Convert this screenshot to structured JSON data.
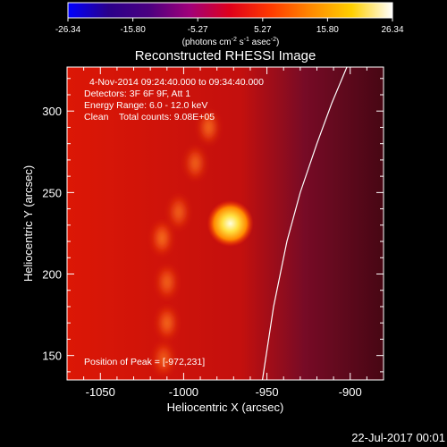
{
  "chart_data": {
    "type": "heatmap",
    "title": "Reconstructed RHESSI Image",
    "xlabel": "Heliocentric X (arcsec)",
    "ylabel": "Heliocentric Y (arcsec)",
    "xlim": [
      -1070,
      -880
    ],
    "ylim": [
      135,
      327
    ],
    "x_ticks": [
      -1050,
      -1000,
      -950,
      -900
    ],
    "y_ticks": [
      150,
      200,
      250,
      300
    ],
    "colorbar": {
      "min": -26.34,
      "max": 26.34,
      "tick_values": [
        -26.34,
        -15.8,
        -5.27,
        5.27,
        15.8,
        26.34
      ],
      "tick_labels": [
        "-26.34",
        "-15.80",
        "-5.27",
        "5.27",
        "15.80",
        "26.34"
      ],
      "units_text": "(photons cm",
      "units_sup1": "-2",
      "units_mid": " s",
      "units_sup2": "-1",
      "units_mid2": " asec",
      "units_sup3": "-2",
      "units_end": ")",
      "stops": [
        "#0000ff",
        "#2a008a",
        "#4b0080",
        "#a0007a",
        "#e0001a",
        "#ff3a00",
        "#ff8a00",
        "#ffd000",
        "#ffffff"
      ]
    },
    "annotations": {
      "time_range": "4-Nov-2014 09:24:40.000 to 09:34:40.000",
      "detectors": "Detectors: 3F 6F 9F, Att 1",
      "energy": "Energy Range: 6.0 - 12.0 keV",
      "clean": "Clean    Total counts: 9.08E+05",
      "peak": "Position of Peak = [-972,231]"
    },
    "peak": {
      "x": -972,
      "y": 231
    },
    "limb": [
      [
        -953,
        133
      ],
      [
        -946,
        180
      ],
      [
        -938,
        220
      ],
      [
        -930,
        250
      ],
      [
        -920,
        280
      ],
      [
        -911,
        305
      ],
      [
        -902,
        327
      ]
    ],
    "loop_blobs": [
      {
        "x": -985,
        "y": 290,
        "intensity": 0.55
      },
      {
        "x": -993,
        "y": 268,
        "intensity": 0.5
      },
      {
        "x": -1003,
        "y": 238,
        "intensity": 0.48
      },
      {
        "x": -1013,
        "y": 222,
        "intensity": 0.6
      },
      {
        "x": -1010,
        "y": 195,
        "intensity": 0.5
      },
      {
        "x": -1010,
        "y": 170,
        "intensity": 0.55
      },
      {
        "x": -1012,
        "y": 148,
        "intensity": 0.45
      }
    ]
  },
  "footer": {
    "date": "22-Jul-2017 00:01"
  }
}
